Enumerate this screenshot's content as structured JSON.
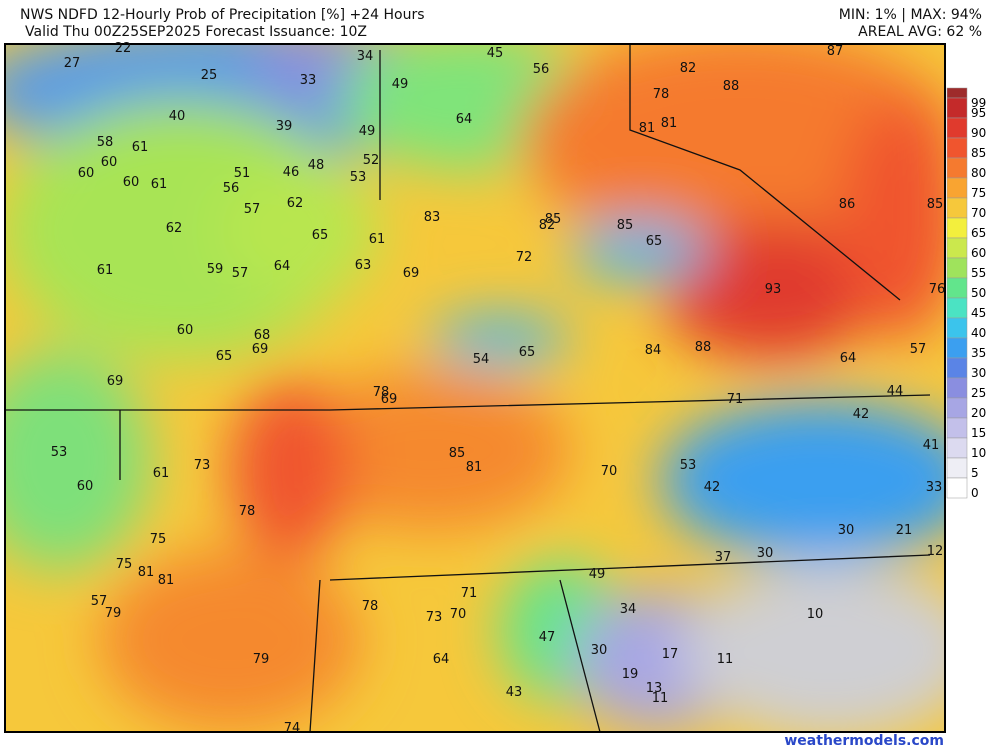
{
  "header": {
    "title": "NWS NDFD 12-Hourly Prob of Precipitation [%] +24 Hours",
    "subtitle": "Valid Thu 00Z25SEP2025   Forecast Issuance: 10Z",
    "minmax": "MIN: 1% | MAX: 94%",
    "areal": "AREAL AVG: 62 %"
  },
  "colorbar": {
    "levels": [
      99,
      95,
      90,
      85,
      80,
      75,
      70,
      65,
      60,
      55,
      50,
      45,
      40,
      35,
      30,
      25,
      20,
      15,
      10,
      5,
      0
    ],
    "colors": [
      "#9e2b2b",
      "#c42a2a",
      "#e03a2d",
      "#f0552e",
      "#f57a2f",
      "#f9a431",
      "#f6c83b",
      "#f3ef3d",
      "#cbe84d",
      "#9fe35c",
      "#62e58c",
      "#4be3c3",
      "#3bc4ec",
      "#3b9ff0",
      "#5a84e6",
      "#8a8ee0",
      "#a7a6e4",
      "#c3c0ea",
      "#dcdaf0",
      "#eeeef5",
      "#ffffff"
    ]
  },
  "labels": [
    27,
    22,
    25,
    33,
    34,
    45,
    56,
    82,
    87,
    49,
    40,
    39,
    64,
    78,
    88,
    49,
    81,
    81,
    58,
    61,
    60,
    60,
    60,
    61,
    51,
    46,
    48,
    52,
    53,
    56,
    57,
    62,
    83,
    85,
    82,
    85,
    86,
    85,
    62,
    65,
    61,
    65,
    61,
    59,
    57,
    64,
    63,
    69,
    72,
    93,
    76,
    60,
    68,
    69,
    65,
    54,
    65,
    84,
    88,
    64,
    57,
    69,
    78,
    69,
    71,
    44,
    42,
    53,
    85,
    81,
    73,
    61,
    70,
    53,
    41,
    60,
    42,
    33,
    78,
    75,
    30,
    21,
    12,
    37,
    30,
    75,
    81,
    81,
    49,
    71,
    78,
    73,
    70,
    79,
    57,
    34,
    10,
    47,
    30,
    17,
    11,
    64,
    79,
    19,
    13,
    11,
    43,
    74
  ],
  "footer": "weathermodels.com"
}
